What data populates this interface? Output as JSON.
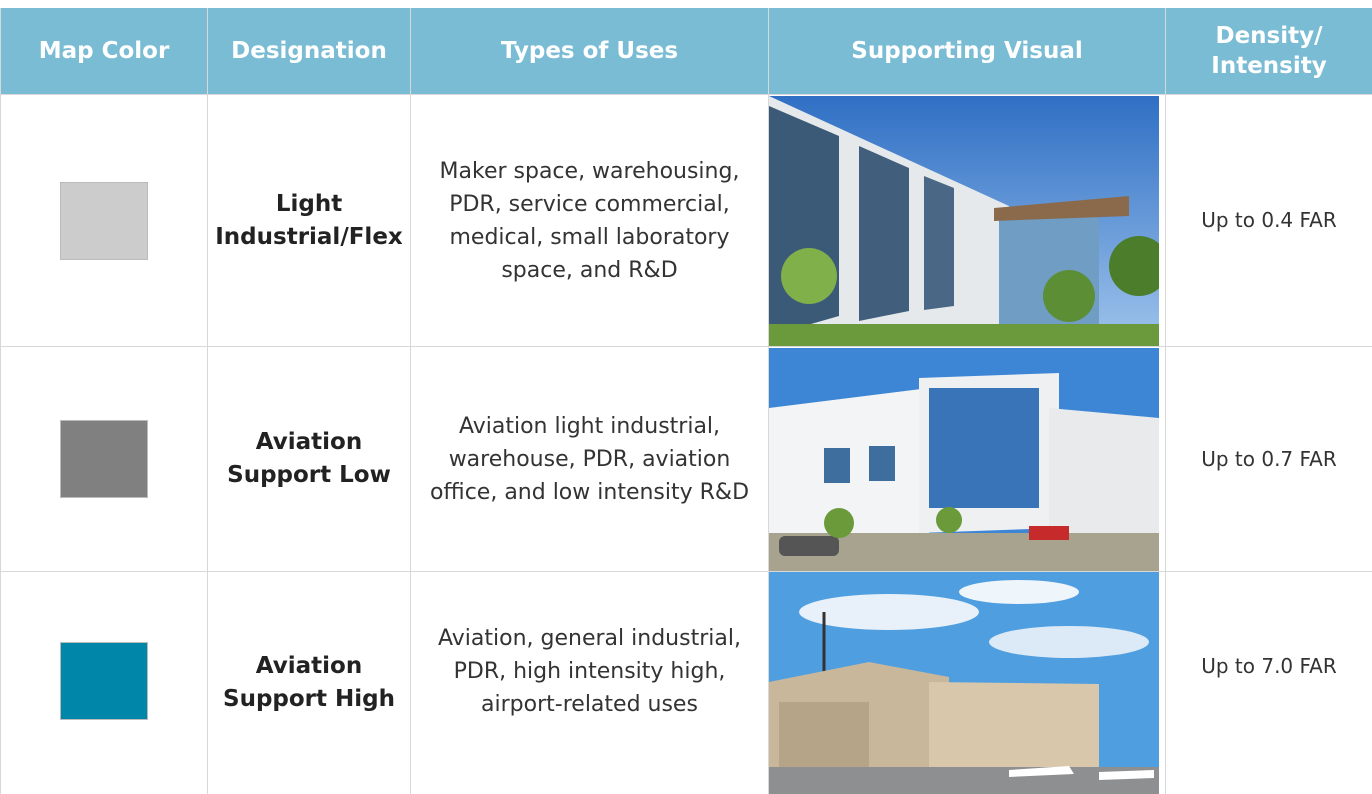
{
  "table": {
    "header": [
      "Map Color",
      "Designation",
      "Types of Uses",
      "Supporting Visual",
      "Density/ Intensity"
    ],
    "rows": [
      {
        "map_color": "#cccccc",
        "designation": "Light Industrial/Flex",
        "uses": "Maker space, warehousing, PDR, service commercial, medical, small laboratory space, and R&D",
        "density": "Up to 0.4 FAR"
      },
      {
        "map_color": "#808080",
        "designation": "Aviation Support Low",
        "uses": "Aviation light industrial, warehouse, PDR, aviation office, and low intensity R&D",
        "density": "Up to 0.7 FAR"
      },
      {
        "map_color": "#0086a8",
        "designation": "Aviation Support High",
        "uses": "Aviation, general industrial, PDR, high intensity high, airport-related uses",
        "density": "Up to 7.0 FAR"
      }
    ]
  }
}
